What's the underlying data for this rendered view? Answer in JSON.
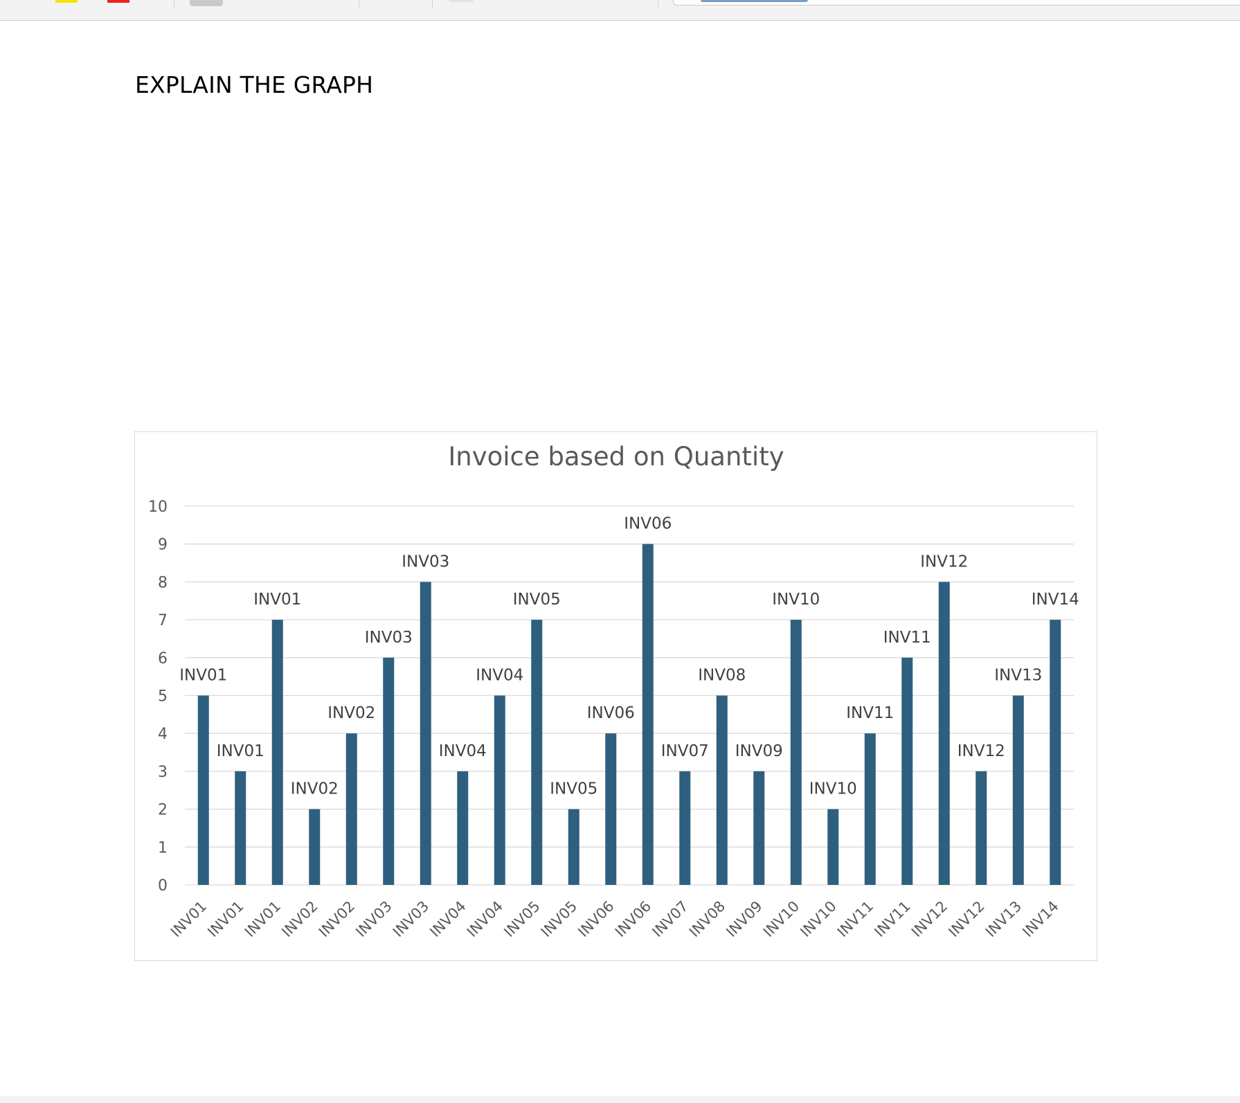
{
  "toolbar": {
    "swatch_colors": [
      "#f5e400",
      "#e8241c"
    ]
  },
  "document": {
    "heading": "EXPLAIN THE GRAPH"
  },
  "chart_data": {
    "type": "bar",
    "title": "Invoice based on Quantity",
    "xlabel": "",
    "ylabel": "",
    "ylim": [
      0,
      10
    ],
    "yticks": [
      0,
      1,
      2,
      3,
      4,
      5,
      6,
      7,
      8,
      9,
      10
    ],
    "grid": true,
    "legend": "none",
    "bar_color": "#2e5f7f",
    "categories": [
      "INV01",
      "INV01",
      "INV01",
      "INV02",
      "INV02",
      "INV03",
      "INV03",
      "INV04",
      "INV04",
      "INV05",
      "INV05",
      "INV06",
      "INV06",
      "INV07",
      "INV08",
      "INV09",
      "INV10",
      "INV10",
      "INV11",
      "INV11",
      "INV12",
      "INV12",
      "INV13",
      "INV14"
    ],
    "values": [
      5,
      3,
      7,
      2,
      4,
      6,
      8,
      3,
      5,
      7,
      2,
      4,
      9,
      3,
      5,
      3,
      7,
      2,
      4,
      6,
      8,
      3,
      5,
      7
    ],
    "data_labels": [
      "INV01",
      "INV01",
      "INV01",
      "INV02",
      "INV02",
      "INV03",
      "INV03",
      "INV04",
      "INV04",
      "INV05",
      "INV05",
      "INV06",
      "INV06",
      "INV07",
      "INV08",
      "INV09",
      "INV10",
      "INV10",
      "INV11",
      "INV11",
      "INV12",
      "INV12",
      "INV13",
      "INV14"
    ]
  }
}
